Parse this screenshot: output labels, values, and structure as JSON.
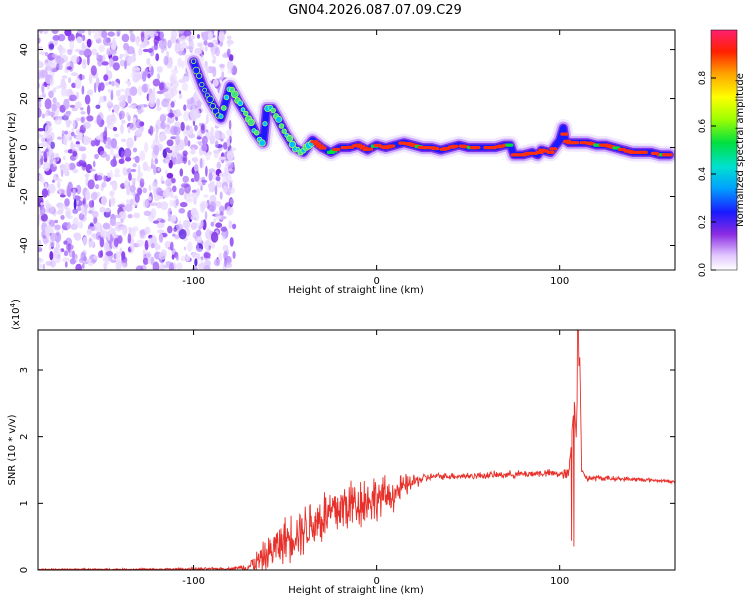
{
  "figure": {
    "title": "GN04.2026.087.07.09.C29"
  },
  "chart_data": [
    {
      "type": "heatmap",
      "title": "",
      "xlabel": "Height of straight line (km)",
      "ylabel": "Frequency (Hz)",
      "xlim": [
        -185,
        163
      ],
      "ylim": [
        -50,
        48
      ],
      "xticks": [
        -100,
        0,
        100
      ],
      "yticks": [
        -40,
        -20,
        0,
        20,
        40
      ],
      "noise_region_x": [
        -185,
        -80
      ],
      "ridge": {
        "x": [
          -100,
          -95,
          -90,
          -85,
          -80,
          -75,
          -70,
          -66,
          -62,
          -60,
          -57,
          -54,
          -50,
          -45,
          -40,
          -35,
          -30,
          -25,
          -20,
          -15,
          -10,
          -5,
          0,
          5,
          10,
          15,
          20,
          25,
          30,
          35,
          40,
          45,
          50,
          55,
          60,
          65,
          70,
          73,
          75,
          80,
          85,
          88,
          90,
          95,
          100,
          102,
          103,
          105,
          110,
          115,
          120,
          125,
          130,
          135,
          140,
          145,
          150,
          155,
          160
        ],
        "y": [
          35,
          25,
          18,
          12,
          25,
          18,
          12,
          6,
          2,
          16,
          16,
          12,
          6,
          0,
          -2,
          3,
          0,
          -2,
          0,
          0,
          1,
          -1,
          1,
          0,
          1,
          2,
          1,
          0,
          0,
          -1,
          0,
          1,
          0,
          0,
          0,
          0,
          1,
          1,
          -3,
          -3,
          -2,
          -3,
          -1,
          -2,
          3,
          8,
          3,
          2,
          2,
          2,
          1,
          1,
          0,
          -1,
          -2,
          -2,
          -2,
          -3,
          -3
        ]
      },
      "colorbar": {
        "label": "Normalized spectral amplitude",
        "range": [
          0,
          1
        ],
        "ticks": [
          "0.0",
          "0.2",
          "0.4",
          "0.6",
          "0.8"
        ],
        "tick_values": [
          0,
          0.2,
          0.4,
          0.6,
          0.8
        ]
      }
    },
    {
      "type": "line",
      "title": "",
      "xlabel": "Height of straight line (km)",
      "ylabel": "SNR (10 * v/v)",
      "scale_label": "(x10",
      "scale_exponent": "4",
      "xlim": [
        -185,
        163
      ],
      "ylim": [
        0,
        3.6
      ],
      "xticks": [
        -100,
        0,
        100
      ],
      "yticks": [
        0,
        1,
        2,
        3
      ],
      "series": [
        {
          "name": "SNR",
          "color": "#e8302a",
          "envelope": {
            "x": [
              -185,
              -120,
              -80,
              -70,
              -65,
              -60,
              -55,
              -50,
              -45,
              -40,
              -35,
              -30,
              -25,
              -20,
              -15,
              -10,
              -5,
              0,
              5,
              10,
              15,
              20,
              25,
              30,
              40,
              50,
              60,
              70,
              80,
              90,
              95,
              100,
              105,
              106,
              107,
              108,
              109,
              110,
              111,
              112,
              115,
              120,
              130,
              140,
              150,
              160,
              163
            ],
            "y": [
              0.01,
              0.01,
              0.02,
              0.05,
              0.12,
              0.22,
              0.35,
              0.45,
              0.55,
              0.62,
              0.7,
              0.78,
              0.85,
              0.92,
              0.98,
              1.02,
              1.05,
              1.08,
              1.1,
              1.15,
              1.25,
              1.32,
              1.37,
              1.4,
              1.41,
              1.41,
              1.42,
              1.43,
              1.44,
              1.45,
              1.45,
              1.44,
              1.42,
              1.8,
              2.2,
              2.5,
              2.0,
              2.9,
              3.2,
              1.5,
              1.37,
              1.38,
              1.37,
              1.36,
              1.35,
              1.33,
              1.32
            ]
          },
          "noise_amplitude": {
            "x": [
              -185,
              -75,
              -65,
              -50,
              -40,
              -30,
              -20,
              -10,
              0,
              10,
              20,
              30,
              100,
              105,
              112,
              163
            ],
            "y": [
              0.01,
              0.02,
              0.2,
              0.35,
              0.4,
              0.45,
              0.45,
              0.42,
              0.35,
              0.25,
              0.12,
              0.05,
              0.06,
              0.12,
              0.05,
              0.02
            ]
          }
        }
      ]
    }
  ],
  "colors": {
    "axis": "#000000",
    "line": "#e8302a",
    "noise_blob": "#7a3cf0"
  }
}
